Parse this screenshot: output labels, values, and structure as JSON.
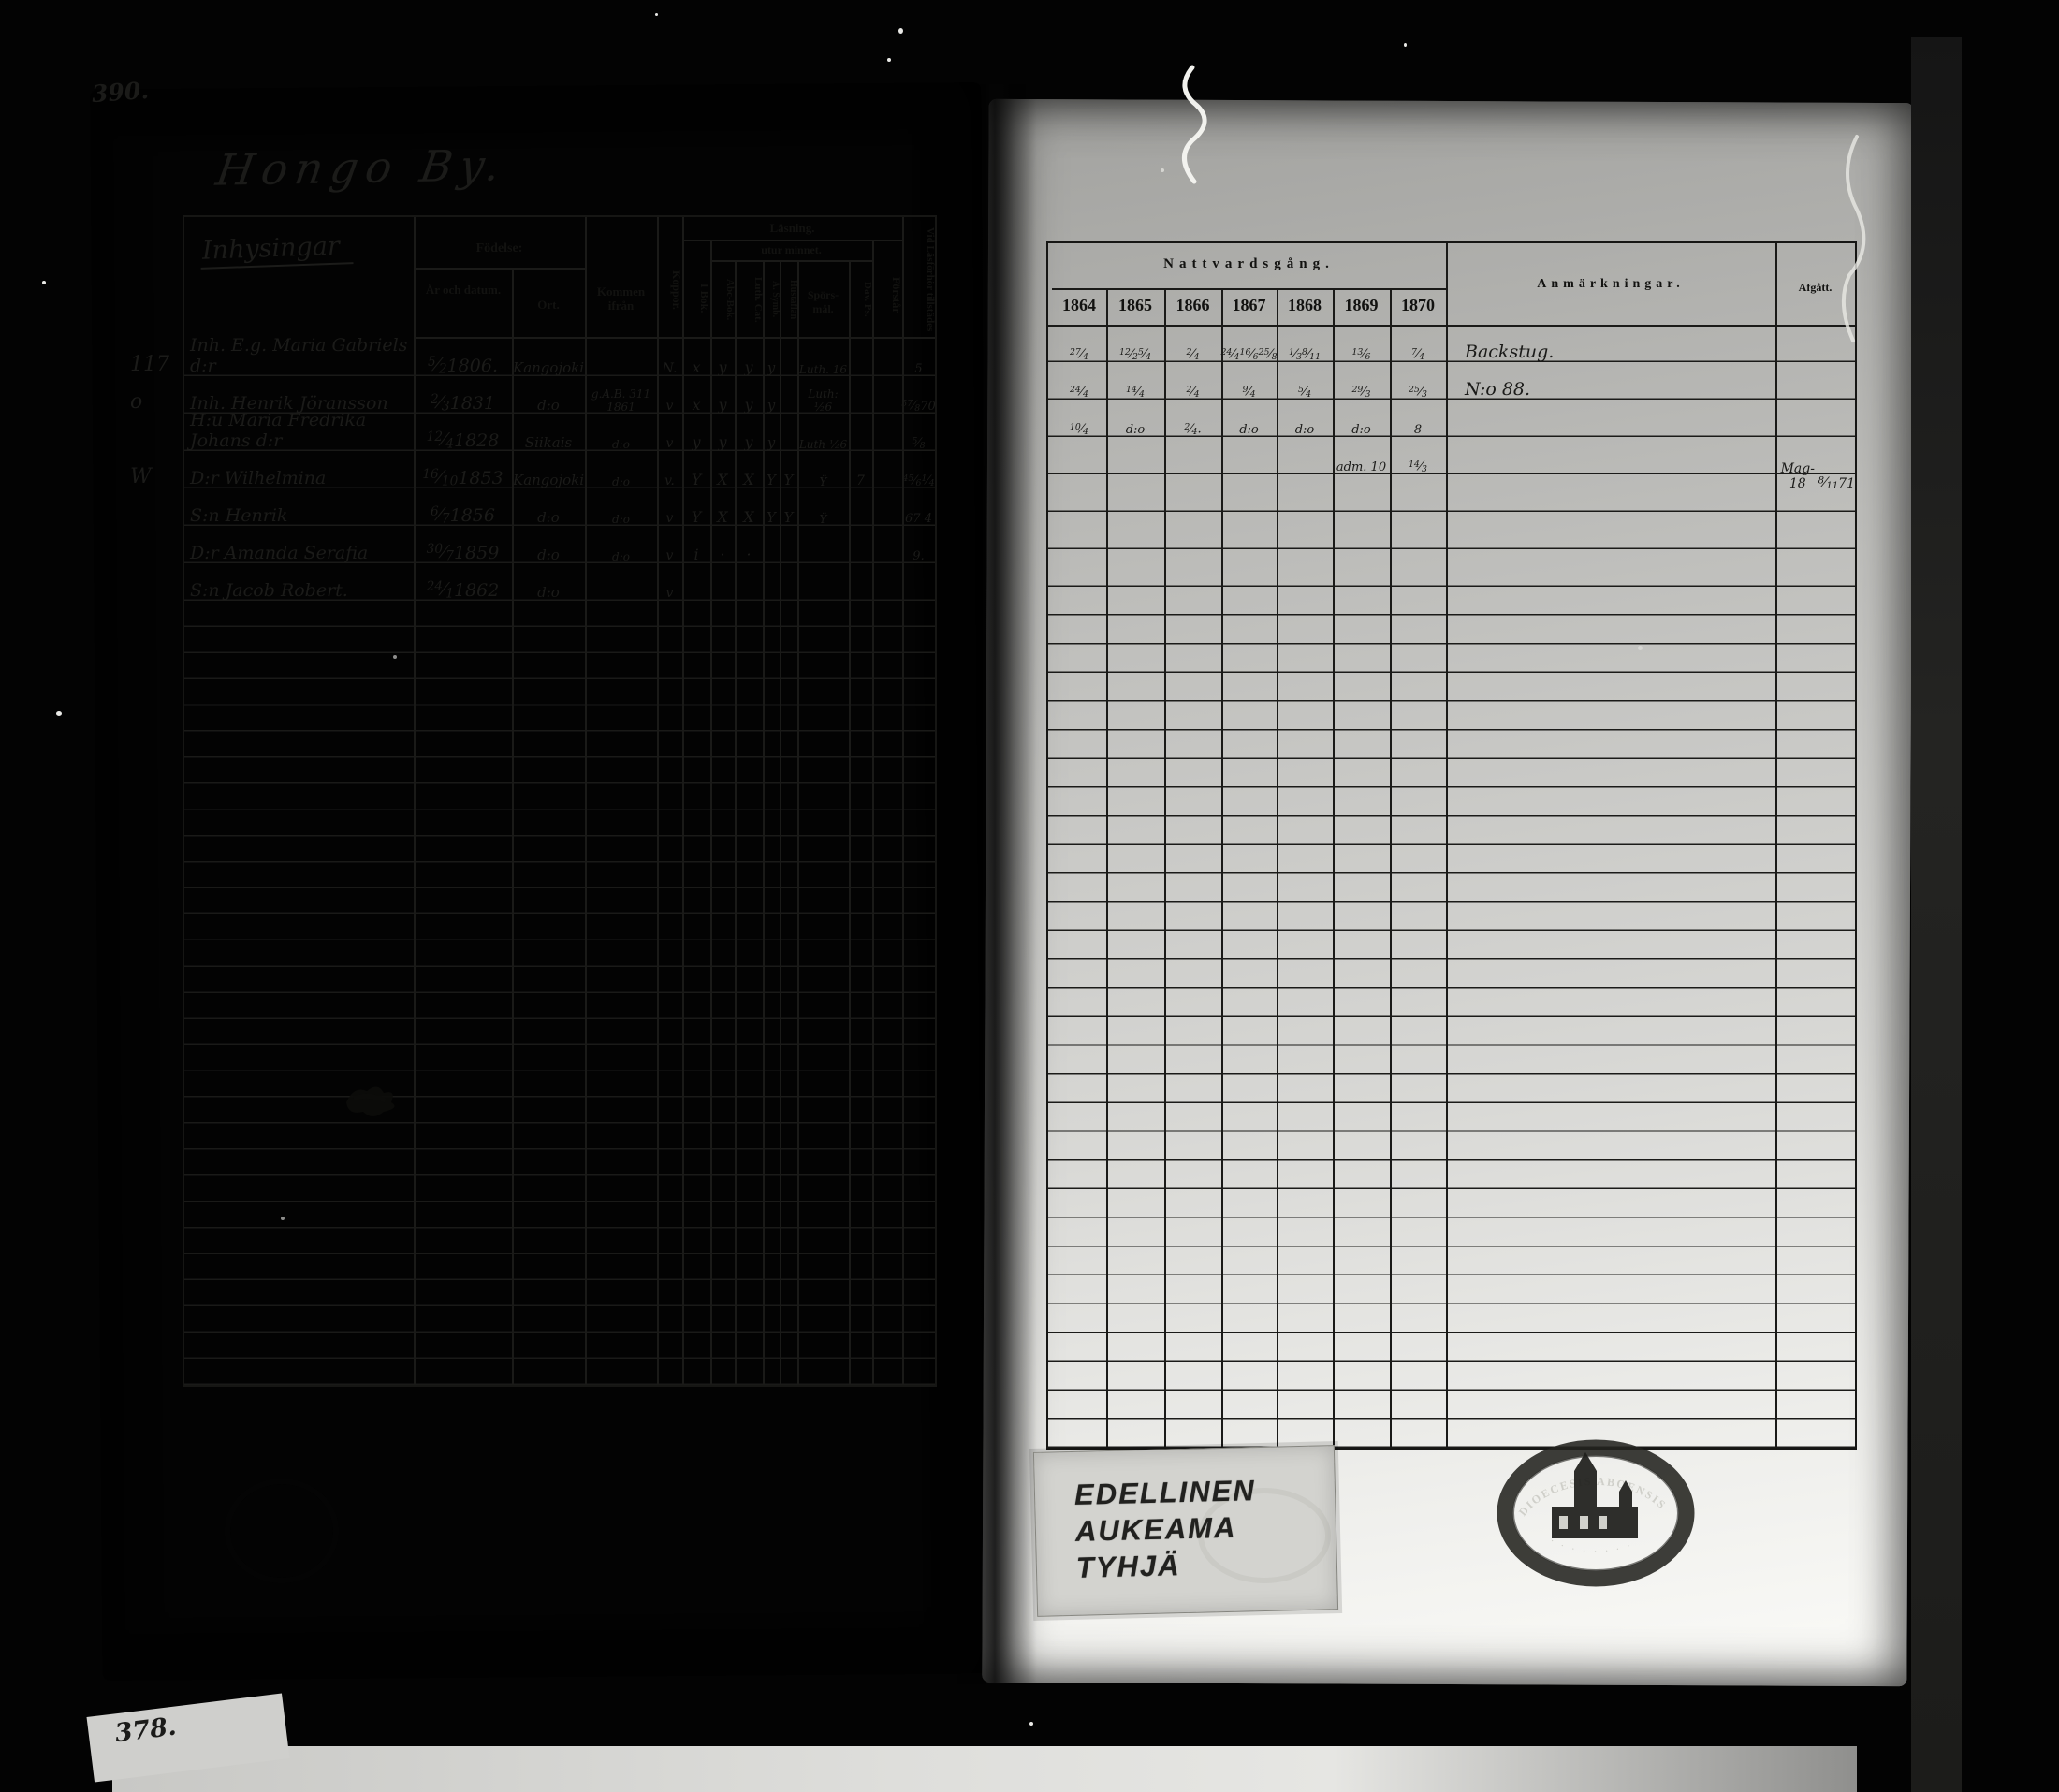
{
  "page": {
    "top_left_number": "390.",
    "bottom_left_number": "378.",
    "title": "Hongo By.",
    "section_label": "Inhysingar"
  },
  "left_table": {
    "header": {
      "fodelse": "Födelse:",
      "ar_och_datum": "År och datum.",
      "ort": "Ort.",
      "kommen_ifran": "Kommen ifrån",
      "koppor": "Koppor.",
      "i_bok": "I Bok.",
      "lasning": "Läsning.",
      "utur_minnet": "utur minnet.",
      "abc_bok": "Abc-Bok.",
      "luth_cat": "Luth. Cat.",
      "a_symb": "A. Symb.",
      "hustaflan": "Hustaflan",
      "sporsmal": "Spörs-mål.",
      "dav_ps": "Dav. Ps.",
      "forstar": "Förstår",
      "vid_lasforhor": "Vid Läsförhör tillstädes"
    },
    "rows": [
      {
        "margin": "117",
        "name": "Inh. E.g. Maria Gabriels d:r",
        "born": "5/2 1806.",
        "ort": "Kangojoki",
        "kommen": "",
        "koppor": "N.",
        "ibok": "x",
        "abc": "y",
        "luth": "y",
        "asymb": "y",
        "hust": "",
        "sporsmal": "Luth. 16",
        "dav": "",
        "forstar": "",
        "vid": "5"
      },
      {
        "margin": "o",
        "name": "Inh. Henrik Jöransson",
        "born": "2/3 1831",
        "ort": "d:o",
        "kommen": "g.A.B. 311 1861",
        "koppor": "v",
        "ibok": "x",
        "abc": "y",
        "luth": "y",
        "asymb": "y",
        "hust": "",
        "sporsmal": "Luth: ½6",
        "dav": "",
        "forstar": "",
        "vid": "57/8 70"
      },
      {
        "margin": "",
        "name": "H:u Maria Fredrika Johans d:r",
        "born": "12/4 1828",
        "ort": "Siikais",
        "kommen": "d:o",
        "koppor": "v",
        "ibok": "y",
        "abc": "y",
        "luth": "y",
        "asymb": "y",
        "hust": "",
        "sporsmal": "Luth ½6",
        "dav": "",
        "forstar": "",
        "vid": "5/8"
      },
      {
        "margin": "W",
        "name": "D:r Wilhelmina",
        "born": "16/10 1853",
        "ort": "Kangojoki",
        "kommen": "d:o",
        "koppor": "v.",
        "ibok": "Y",
        "abc": "X",
        "luth": "X",
        "asymb": "Y",
        "hust": "Y",
        "sporsmal": "Ÿ",
        "dav": "7",
        "vid": "45/6 1/4"
      },
      {
        "margin": "",
        "name": "S:n Henrik",
        "born": "6/7 1856",
        "ort": "d:o",
        "kommen": "d:o",
        "koppor": "v",
        "ibok": "Y",
        "abc": "X",
        "luth": "X",
        "asymb": "Y",
        "hust": "Y",
        "sporsmal": "Ÿ",
        "dav": "",
        "vid": "67 4"
      },
      {
        "margin": "",
        "name": "D:r Amanda Serafia",
        "born": "30/7 1859",
        "ort": "d:o",
        "kommen": "d:o",
        "koppor": "v",
        "ibok": "i",
        "abc": "·",
        "luth": "·",
        "asymb": "",
        "hust": "",
        "sporsmal": "",
        "dav": "",
        "vid": "9."
      },
      {
        "margin": "",
        "name": "S:n Jacob Robert.",
        "born": "24/1 1862",
        "ort": "d:o",
        "kommen": "",
        "koppor": "v",
        "ibok": "",
        "abc": "",
        "luth": "",
        "asymb": "",
        "hust": "",
        "sporsmal": "",
        "dav": "",
        "vid": ""
      }
    ]
  },
  "right_table": {
    "header": {
      "nattvardsgang": "Nattvardsgång.",
      "years": [
        "1864",
        "1865",
        "1866",
        "1867",
        "1868",
        "1869",
        "1870"
      ],
      "anmarkningar": "Anmärkningar.",
      "afgatt": "Afgått."
    },
    "rows": [
      {
        "y": [
          "27/4",
          "12/2 5/4",
          "2/4",
          "24/4 16/6 25/8",
          "1/3 8/11",
          "13/6",
          "7/4"
        ],
        "anm": "Backstug.",
        "afgatt": ""
      },
      {
        "y": [
          "24/4",
          "14/4",
          "2/4",
          "9/4",
          "5/4",
          "29/3",
          "25/3"
        ],
        "anm": "N:o 88.",
        "afgatt": ""
      },
      {
        "y": [
          "10/4",
          "d:o",
          "2/4.",
          "d:o",
          "d:o",
          "d:o",
          "8"
        ],
        "anm": "",
        "afgatt": ""
      },
      {
        "y": [
          "",
          "",
          "",
          "",
          "",
          "adm. 10",
          "14/3"
        ],
        "anm": "",
        "afgatt": "Mag- 18 8/11 71"
      },
      {
        "y": [
          "",
          "",
          "",
          "",
          "",
          "",
          ""
        ],
        "anm": "",
        "afgatt": ""
      },
      {
        "y": [
          "",
          "",
          "",
          "",
          "",
          "",
          ""
        ],
        "anm": "",
        "afgatt": ""
      },
      {
        "y": [
          "",
          "",
          "",
          "",
          "",
          "",
          ""
        ],
        "anm": "",
        "afgatt": ""
      }
    ]
  },
  "stamps": {
    "slip_lines": [
      "EDELLINEN",
      "AUKEAMA",
      "TYHJÄ"
    ],
    "seal_arc_top": "DIOECESIS ABOENSIS",
    "seal_arc_bottom": "· · · · · · · ·"
  }
}
